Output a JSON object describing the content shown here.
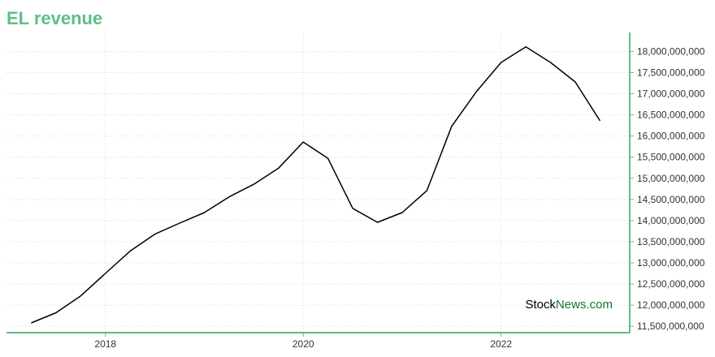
{
  "colors": {
    "accent": "#5cbf84",
    "axis": "#5cbf84",
    "grid": "#bfe6cf",
    "line": "#000000",
    "watermark_dark": "#000000",
    "watermark_green": "#0f7a2c"
  },
  "watermark": {
    "part1": "Stock",
    "part2": "News",
    "part3": ".com"
  },
  "chart_data": {
    "type": "line",
    "title": "EL revenue",
    "xlabel": "",
    "ylabel": "",
    "xlim": [
      2017.0,
      2023.3
    ],
    "ylim": [
      11350000000,
      18450000000
    ],
    "grid": true,
    "y_axis_side": "right",
    "x_ticks": [
      2018,
      2020,
      2022
    ],
    "x_tick_labels": [
      "2018",
      "2020",
      "2022"
    ],
    "y_ticks": [
      11500000000,
      12000000000,
      12500000000,
      13000000000,
      13500000000,
      14000000000,
      14500000000,
      15000000000,
      15500000000,
      16000000000,
      16500000000,
      17000000000,
      17500000000,
      18000000000
    ],
    "y_tick_labels": [
      "11,500,000,000",
      "12,000,000,000",
      "12,500,000,000",
      "13,000,000,000",
      "13,500,000,000",
      "14,000,000,000",
      "14,500,000,000",
      "15,000,000,000",
      "15,500,000,000",
      "16,000,000,000",
      "16,500,000,000",
      "17,000,000,000",
      "17,500,000,000",
      "18,000,000,000"
    ],
    "series": [
      {
        "x": [
          2017.25,
          2017.5,
          2017.75,
          2018.0,
          2018.25,
          2018.5,
          2018.75,
          2019.0,
          2019.25,
          2019.5,
          2019.75,
          2020.0,
          2020.25,
          2020.5,
          2020.75,
          2021.0,
          2021.25,
          2021.5,
          2021.75,
          2022.0,
          2022.25,
          2022.5,
          2022.75,
          2023.0
        ],
        "y": [
          11580000000,
          11820000000,
          12220000000,
          12750000000,
          13280000000,
          13680000000,
          13940000000,
          14190000000,
          14560000000,
          14860000000,
          15240000000,
          15860000000,
          15470000000,
          14290000000,
          13960000000,
          14190000000,
          14710000000,
          16230000000,
          17050000000,
          17740000000,
          18110000000,
          17740000000,
          17280000000,
          16360000000
        ]
      }
    ]
  }
}
